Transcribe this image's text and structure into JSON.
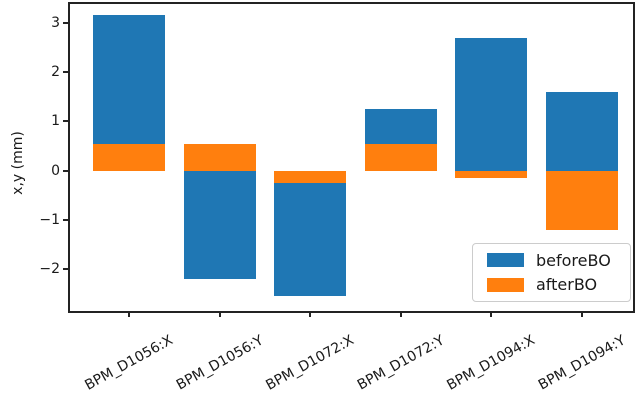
{
  "chart_data": {
    "type": "bar",
    "title": "",
    "xlabel": "",
    "ylabel": "x,y (mm)",
    "categories": [
      "BPM_D1056:X",
      "BPM_D1056:Y",
      "BPM_D1072:X",
      "BPM_D1072:Y",
      "BPM_D1094:X",
      "BPM_D1094:Y"
    ],
    "series": [
      {
        "name": "beforeBO",
        "color": "#1f77b4",
        "values": [
          3.15,
          -2.2,
          -2.55,
          1.25,
          2.7,
          1.6
        ]
      },
      {
        "name": "afterBO",
        "color": "#ff7f0e",
        "values": [
          0.55,
          0.55,
          -0.25,
          0.55,
          -0.15,
          -1.2
        ]
      }
    ],
    "bar_style": "overlaid-from-zero",
    "ylim": [
      -2.87,
      3.4
    ],
    "yticks": [
      3,
      2,
      1,
      0,
      -1,
      -2
    ],
    "ytick_labels": [
      "3",
      "2",
      "1",
      "0",
      "−1",
      "−2"
    ],
    "xtick_rotation_deg": 29,
    "grid": false,
    "legend": {
      "position": "lower-right",
      "entries": [
        {
          "label": "beforeBO",
          "color": "#1f77b4"
        },
        {
          "label": "afterBO",
          "color": "#ff7f0e"
        }
      ]
    }
  },
  "colors": {
    "spine": "#232323",
    "background": "#ffffff",
    "text": "#1a1a1a"
  }
}
